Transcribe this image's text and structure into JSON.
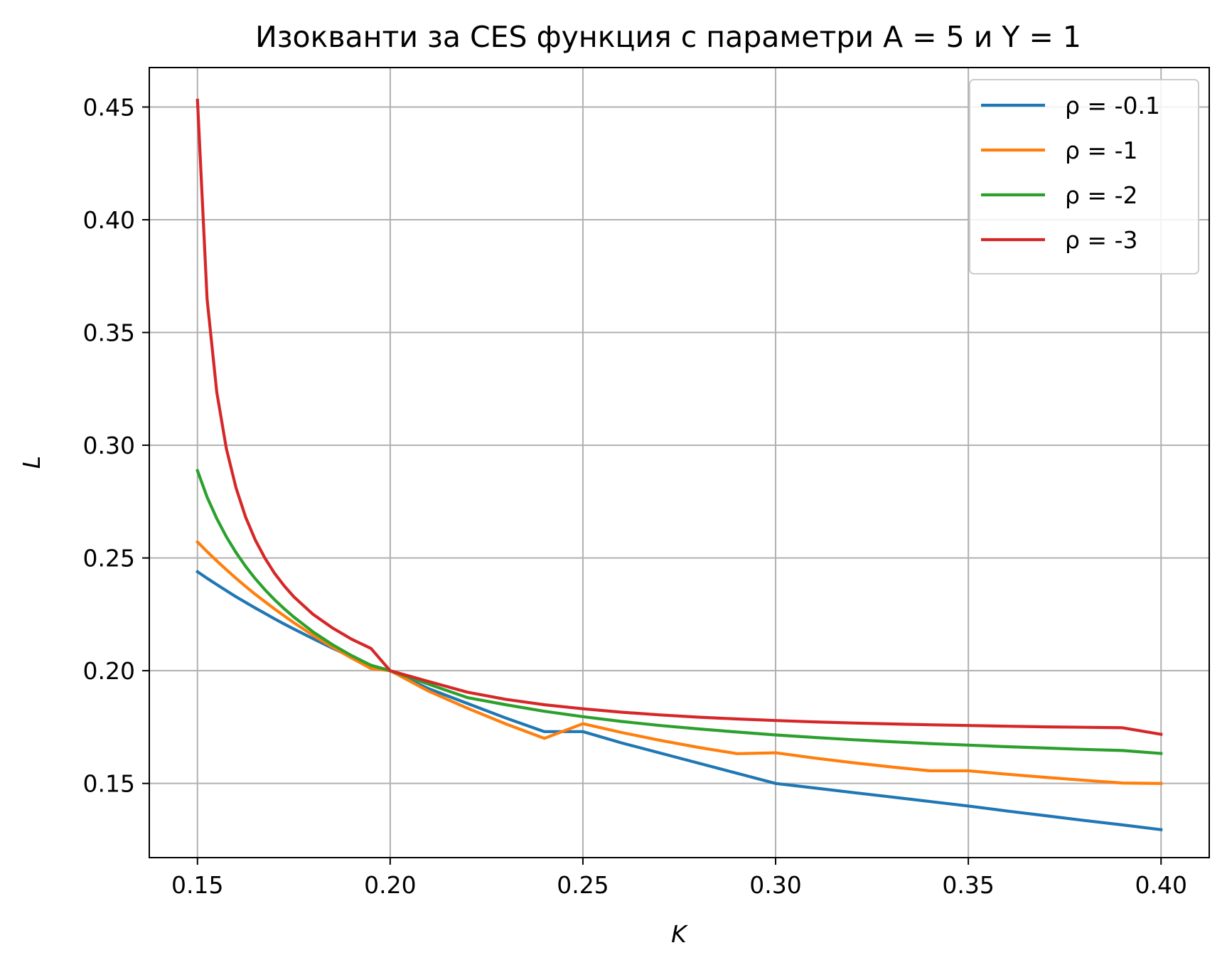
{
  "chart_data": {
    "type": "line",
    "title": "Изокванти за CES функция с параметри A = 5 и Y = 1",
    "xlabel": "K",
    "ylabel": "L",
    "xlim": [
      0.1375,
      0.4125
    ],
    "ylim": [
      0.1171,
      0.4675
    ],
    "x_ticks": [
      "0.15",
      "0.20",
      "0.25",
      "0.30",
      "0.35",
      "0.40"
    ],
    "x_tick_values": [
      0.15,
      0.2,
      0.25,
      0.3,
      0.35,
      0.4
    ],
    "y_ticks": [
      "0.15",
      "0.20",
      "0.25",
      "0.30",
      "0.35",
      "0.40",
      "0.45"
    ],
    "y_tick_values": [
      0.15,
      0.2,
      0.25,
      0.3,
      0.35,
      0.4,
      0.45
    ],
    "grid": true,
    "legend_position": "top-right",
    "x": [
      0.15,
      0.1525,
      0.155,
      0.1575,
      0.16,
      0.1625,
      0.165,
      0.1675,
      0.17,
      0.1725,
      0.175,
      0.18,
      0.185,
      0.19,
      0.195,
      0.2,
      0.21,
      0.22,
      0.23,
      0.24,
      0.25,
      0.26,
      0.27,
      0.28,
      0.29,
      0.3,
      0.31,
      0.32,
      0.33,
      0.34,
      0.35,
      0.36,
      0.37,
      0.38,
      0.39,
      0.4
    ],
    "series": [
      {
        "name": "ρ = -0.1",
        "color": "#1f77b4",
        "values": [
          0.2439,
          0.241,
          0.2382,
          0.2355,
          0.2328,
          0.2303,
          0.2278,
          0.2254,
          0.223,
          0.2207,
          0.2185,
          0.2142,
          0.21,
          0.2061,
          0.2024,
          0.2,
          0.192,
          0.1855,
          0.179,
          0.173,
          0.173,
          0.168,
          0.1635,
          0.159,
          0.1545,
          0.15,
          0.148,
          0.146,
          0.144,
          0.142,
          0.14,
          0.1378,
          0.1357,
          0.1336,
          0.1316,
          0.1295
        ]
      },
      {
        "name": "ρ = -1",
        "color": "#ff7f0e",
        "values": [
          0.2571,
          0.2528,
          0.2487,
          0.2448,
          0.241,
          0.2374,
          0.2339,
          0.2306,
          0.2274,
          0.2243,
          0.2213,
          0.2157,
          0.2105,
          0.2056,
          0.201,
          0.2,
          0.1909,
          0.1834,
          0.1764,
          0.17,
          0.1765,
          0.1726,
          0.1691,
          0.166,
          0.1632,
          0.1636,
          0.1613,
          0.1592,
          0.1573,
          0.1556,
          0.1556,
          0.1541,
          0.1527,
          0.1514,
          0.1502,
          0.15
        ]
      },
      {
        "name": "ρ = -2",
        "color": "#2ca02c",
        "values": [
          0.2887,
          0.277,
          0.2675,
          0.2594,
          0.2524,
          0.2463,
          0.2408,
          0.2359,
          0.2315,
          0.2275,
          0.2238,
          0.2172,
          0.2116,
          0.2067,
          0.2024,
          0.2,
          0.194,
          0.1881,
          0.1849,
          0.182,
          0.1796,
          0.1775,
          0.1757,
          0.1742,
          0.1728,
          0.1715,
          0.1704,
          0.1694,
          0.1685,
          0.1677,
          0.167,
          0.1663,
          0.1657,
          0.1651,
          0.1646,
          0.1633
        ]
      },
      {
        "name": "ρ = -3",
        "color": "#d62728",
        "values": [
          0.453,
          0.3649,
          0.3236,
          0.2985,
          0.2811,
          0.2681,
          0.258,
          0.2499,
          0.2432,
          0.2376,
          0.2328,
          0.225,
          0.219,
          0.214,
          0.2099,
          0.2,
          0.1952,
          0.1905,
          0.1873,
          0.1849,
          0.1831,
          0.1816,
          0.1804,
          0.1794,
          0.1786,
          0.1779,
          0.1773,
          0.1768,
          0.1764,
          0.176,
          0.1757,
          0.1754,
          0.1751,
          0.1749,
          0.1747,
          0.1718
        ]
      }
    ]
  }
}
